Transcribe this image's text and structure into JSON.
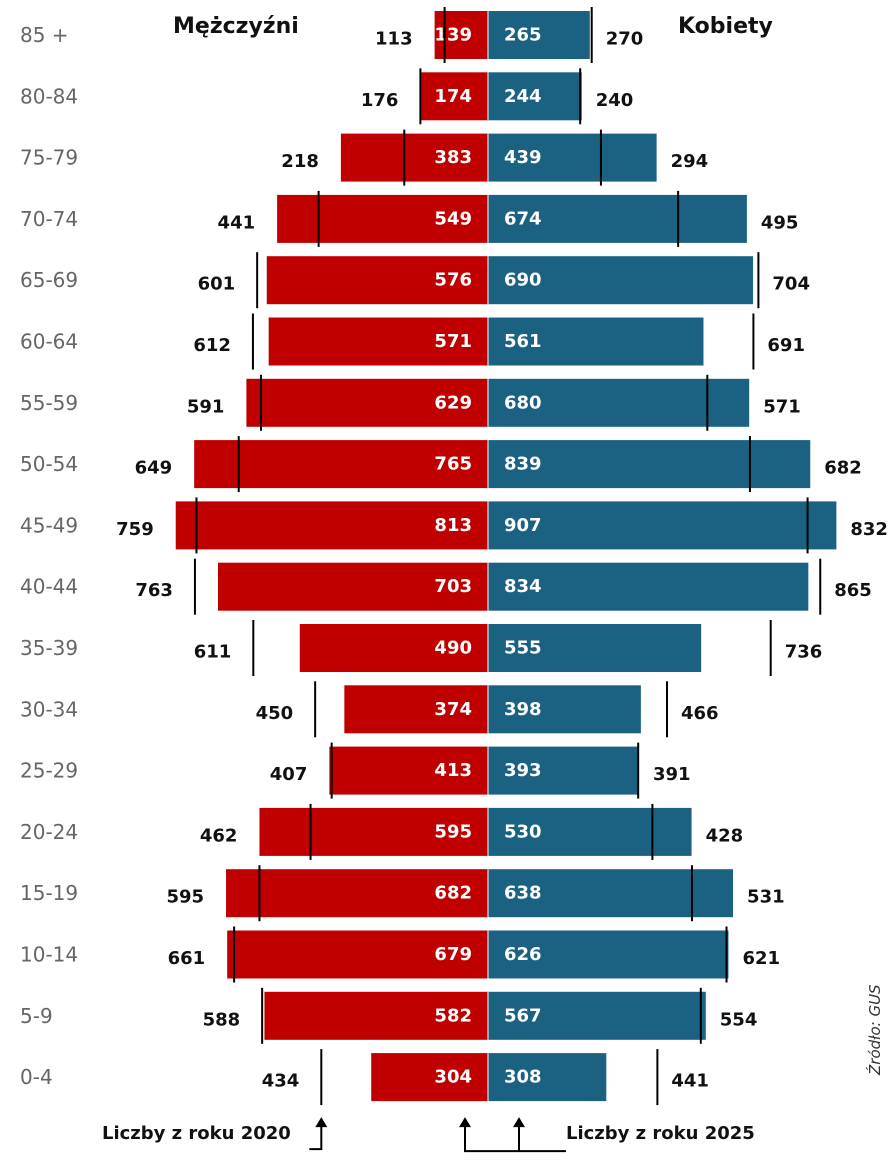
{
  "headers": {
    "left": "Mężczyźni",
    "right": "Kobiety"
  },
  "notes": {
    "label_2020": "Liczby z roku 2020",
    "label_2025": "Liczby z roku 2025"
  },
  "source": "Źródło: GUS",
  "colors": {
    "men": "#c00000",
    "women": "#1b6282",
    "marker": "#000000",
    "age_label": "#666666"
  },
  "chart_data": {
    "type": "bar",
    "subtype": "population-pyramid",
    "categories": [
      "85 +",
      "80-84",
      "75-79",
      "70-74",
      "65-69",
      "60-64",
      "55-59",
      "50-54",
      "45-49",
      "40-44",
      "35-39",
      "30-34",
      "25-29",
      "20-24",
      "15-19",
      "10-14",
      "5-9",
      "0-4"
    ],
    "series": [
      {
        "name": "Mężczyźni",
        "year": "2025",
        "values": [
          139,
          174,
          383,
          549,
          576,
          571,
          629,
          765,
          813,
          703,
          490,
          374,
          413,
          595,
          682,
          679,
          582,
          304
        ]
      },
      {
        "name": "Kobiety",
        "year": "2025",
        "values": [
          265,
          244,
          439,
          674,
          690,
          561,
          680,
          839,
          907,
          834,
          555,
          398,
          393,
          530,
          638,
          626,
          567,
          308
        ]
      },
      {
        "name": "Mężczyźni",
        "year": "2020",
        "values": [
          113,
          176,
          218,
          441,
          601,
          612,
          591,
          649,
          759,
          763,
          611,
          450,
          407,
          462,
          595,
          661,
          588,
          434
        ]
      },
      {
        "name": "Kobiety",
        "year": "2020",
        "values": [
          270,
          240,
          294,
          495,
          704,
          691,
          571,
          682,
          832,
          865,
          736,
          466,
          391,
          428,
          531,
          621,
          554,
          441
        ]
      }
    ],
    "legend": "none",
    "grid": false
  }
}
